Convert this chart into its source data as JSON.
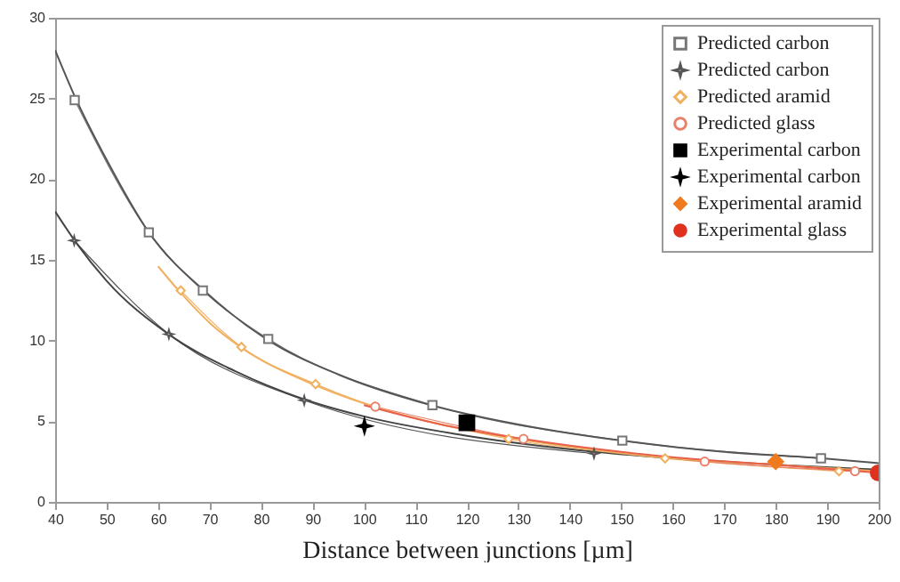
{
  "chart_data": {
    "type": "line",
    "xlabel": "Distance between junctions [µm]",
    "xlim": [
      40,
      200
    ],
    "xticks": [
      40,
      50,
      60,
      70,
      80,
      90,
      100,
      110,
      120,
      130,
      140,
      150,
      160,
      170,
      180,
      190,
      200
    ],
    "ylim": [
      0,
      30
    ],
    "yticks": [
      0,
      5,
      10,
      15,
      20,
      25,
      30
    ],
    "grid": false,
    "legend": "top right",
    "series": [
      {
        "name": "Predicted carbon",
        "marker": "square",
        "color": "#777777",
        "x": [
          43.8,
          58.2,
          68.7,
          81.4,
          113.3,
          150.2,
          188.8
        ],
        "values": [
          24.9,
          16.7,
          13.1,
          10.1,
          6.0,
          3.8,
          2.7
        ]
      },
      {
        "name": "Predicted carbon",
        "marker": "star",
        "color": "#555555",
        "x": [
          43.7,
          62.1,
          88.4,
          144.7
        ],
        "values": [
          16.2,
          10.4,
          6.3,
          3.0
        ]
      },
      {
        "name": "Predicted aramid",
        "marker": "diamond",
        "color": "#f0b060",
        "x": [
          64.4,
          76.2,
          90.6,
          128.1,
          158.5,
          192.3
        ],
        "values": [
          13.1,
          9.6,
          7.3,
          3.9,
          2.7,
          1.9
        ]
      },
      {
        "name": "Predicted glass",
        "marker": "circle",
        "color": "#e8806a",
        "x": [
          102.2,
          131.0,
          166.2,
          195.4
        ],
        "values": [
          5.9,
          3.9,
          2.5,
          1.9
        ]
      },
      {
        "name": "Experimental carbon",
        "type": "scatter",
        "marker": "square",
        "color": "#000000",
        "x": [
          120
        ],
        "values": [
          4.9
        ]
      },
      {
        "name": "Experimental carbon",
        "type": "scatter",
        "marker": "star",
        "color": "#000000",
        "x": [
          100.1
        ],
        "values": [
          4.7
        ]
      },
      {
        "name": "Experimental aramid",
        "type": "scatter",
        "marker": "diamond",
        "color": "#f07a1e",
        "x": [
          180
        ],
        "values": [
          2.5
        ]
      },
      {
        "name": "Experimental glass",
        "type": "scatter",
        "marker": "circle",
        "color": "#e0301e",
        "x": [
          199.9
        ],
        "values": [
          1.8
        ]
      },
      {
        "marker": "none",
        "color": "#555555",
        "x": [
          40,
          44,
          50,
          58,
          70,
          81,
          95,
          113,
          130,
          150,
          170,
          189,
          200
        ],
        "values": [
          28,
          25,
          21.2,
          16.8,
          12.8,
          10.1,
          7.9,
          6.0,
          4.8,
          3.8,
          3.1,
          2.7,
          2.4
        ]
      },
      {
        "marker": "none",
        "color": "#444444",
        "x": [
          40,
          44,
          50,
          62,
          75,
          88,
          100,
          120,
          145,
          170,
          200
        ],
        "values": [
          18,
          16.1,
          13.7,
          10.4,
          8.1,
          6.4,
          5.3,
          4.1,
          3.1,
          2.5,
          2.0
        ]
      },
      {
        "marker": "none",
        "color": "#f0b060",
        "x": [
          60,
          64,
          70,
          76,
          90,
          100,
          115,
          128,
          145,
          160,
          180,
          200
        ],
        "values": [
          14.6,
          13.1,
          11.1,
          9.6,
          7.3,
          6.1,
          4.8,
          4.0,
          3.2,
          2.7,
          2.3,
          1.9
        ]
      },
      {
        "marker": "none",
        "color": "#e8604a",
        "x": [
          100,
          115,
          131,
          150,
          166,
          180,
          200
        ],
        "values": [
          6.0,
          4.8,
          3.9,
          3.1,
          2.6,
          2.3,
          1.8
        ]
      }
    ]
  }
}
